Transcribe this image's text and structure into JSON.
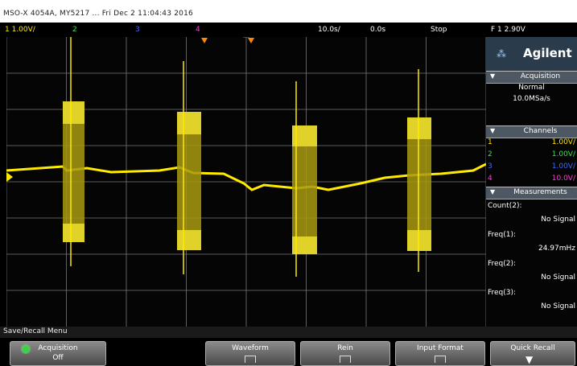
{
  "title_bar": {
    "text": "MSO-X 4054A, MY5217  ...  Fri Dec 2 11:04:43 2016"
  },
  "status_bar": {
    "ch1_scale": "1  1.00V/",
    "ch2": "2",
    "ch3": "3",
    "ch4": "4",
    "time_scale": "10.0s/",
    "time_offset": "0.0s",
    "acq_mode": "Stop",
    "trigger": "F  1  2.90V"
  },
  "brand": {
    "logo": "⁂",
    "name": "Agilent"
  },
  "sidebar": {
    "acquisition": {
      "title": "Acquisition",
      "mode": "Normal",
      "rate": "10.0MSa/s"
    },
    "channels": {
      "title": "Channels",
      "rows": [
        {
          "ch": "1",
          "val": "1.00V/",
          "color": "#ffea00"
        },
        {
          "ch": "2",
          "val": "1.00V/",
          "color": "#3ee05a"
        },
        {
          "ch": "3",
          "val": "1.00V/",
          "color": "#3f6bff"
        },
        {
          "ch": "4",
          "val": "10.0V/",
          "color": "#ff3fd8"
        }
      ]
    },
    "measurements": {
      "title": "Measurements",
      "items": [
        {
          "label": "Count(2):",
          "value": "No Signal"
        },
        {
          "label": "Freq(1):",
          "value": "24.97mHz"
        },
        {
          "label": "Freq(2):",
          "value": "No Signal"
        },
        {
          "label": "Freq(3):",
          "value": "No Signal"
        }
      ]
    }
  },
  "menu_bar": {
    "text": "Save/Recall Menu"
  },
  "softkeys": [
    {
      "line1": "Acquisition",
      "line2": "Off"
    },
    {
      "line1": "Waveform",
      "line2": ""
    },
    {
      "line1": "Rein",
      "line2": ""
    },
    {
      "line1": "Input Format",
      "line2": ""
    },
    {
      "line1": "Quick Recall",
      "line2": ""
    }
  ],
  "colors": {
    "ch1": "#ffea00",
    "ch2": "#3ee05a",
    "ch3": "#3f6bff",
    "ch4": "#ff3fd8",
    "trigger": "#ff8a00"
  },
  "plot": {
    "bursts": [
      {
        "name": "burst-1"
      },
      {
        "name": "burst-2"
      },
      {
        "name": "burst-3"
      },
      {
        "name": "burst-4"
      }
    ]
  }
}
